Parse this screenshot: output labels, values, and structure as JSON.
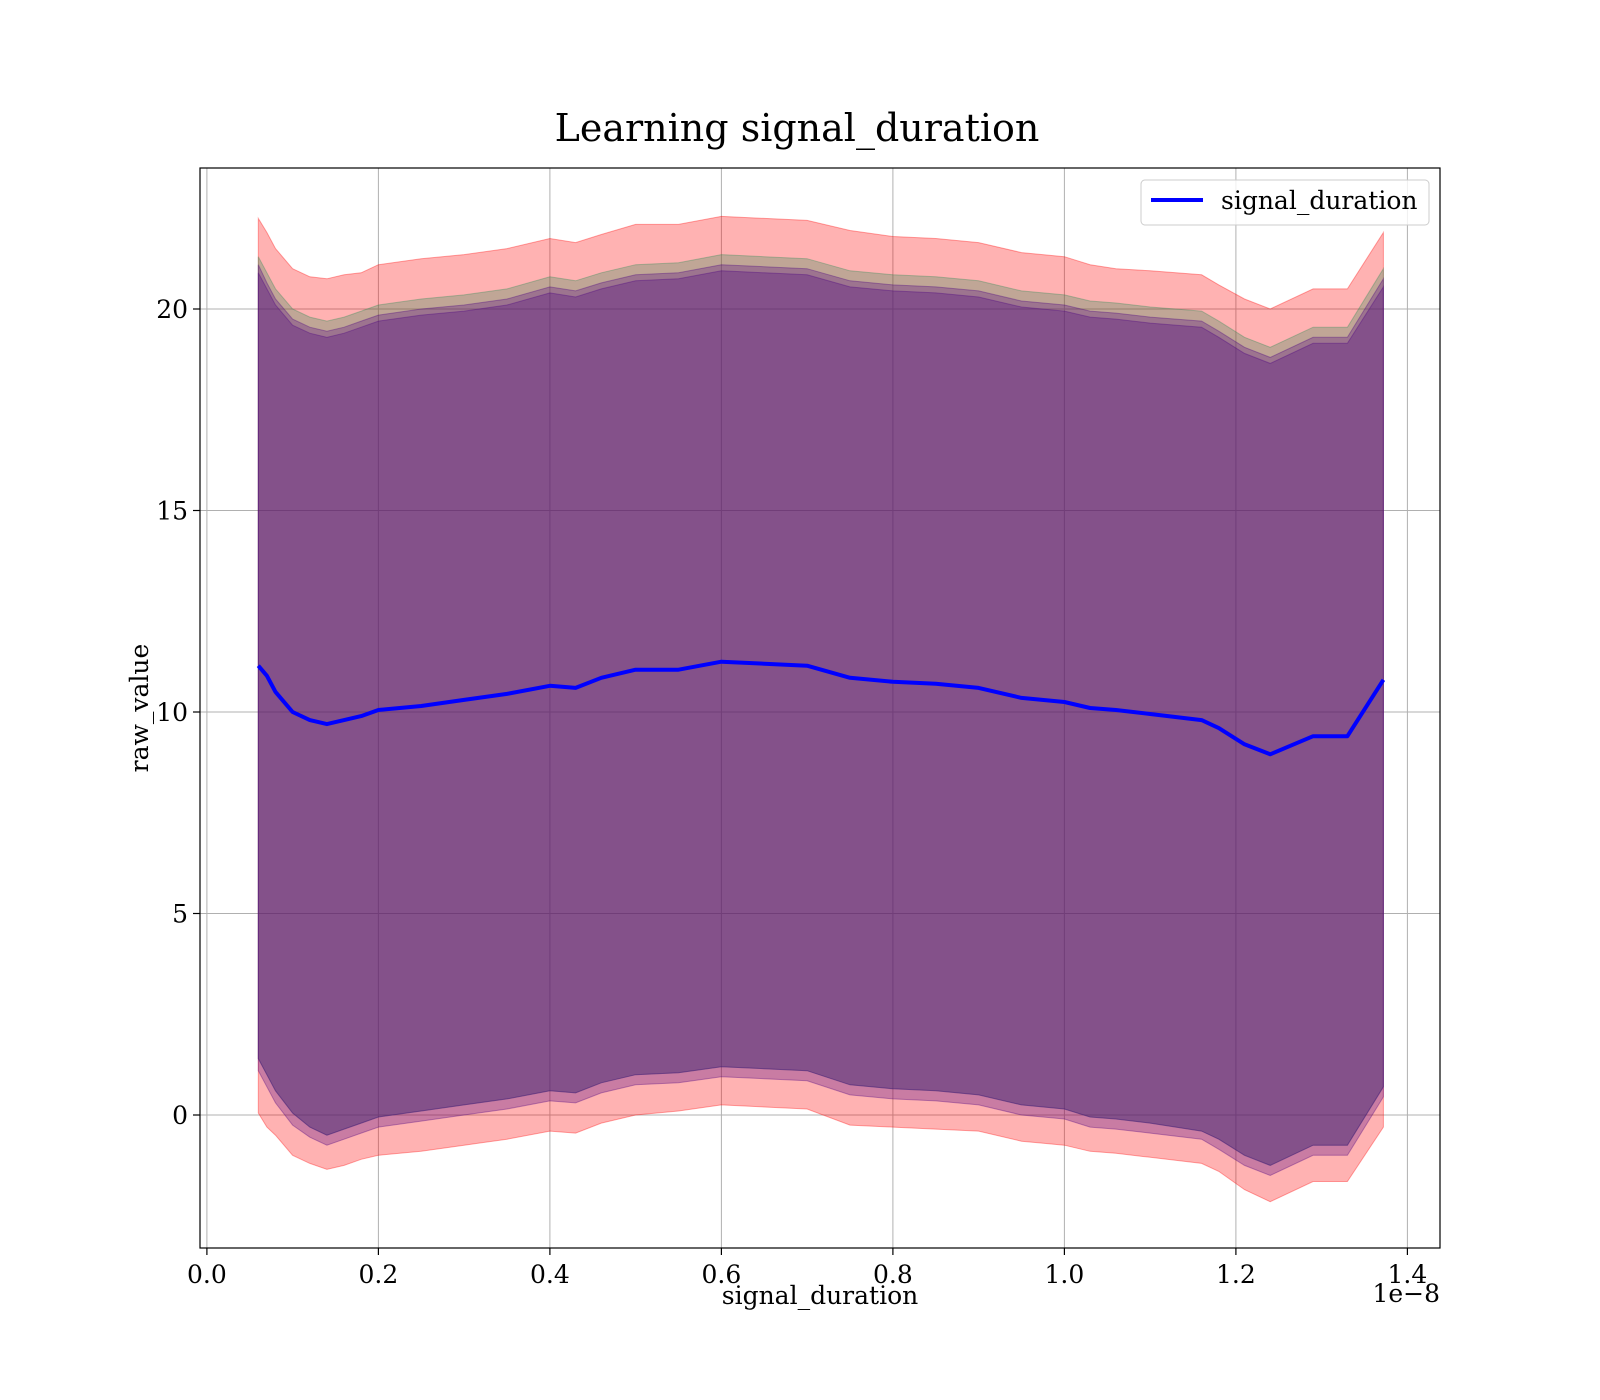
{
  "chart_data": {
    "type": "area",
    "title": "Learning signal_duration",
    "xlabel": "signal_duration",
    "ylabel": "raw_value",
    "x_offset_text": "1e−8",
    "xlim": [
      -0.008,
      1.438
    ],
    "ylim": [
      -3.3,
      23.5
    ],
    "x_ticks": [
      0.0,
      0.2,
      0.4,
      0.6,
      0.8,
      1.0,
      1.2,
      1.4
    ],
    "x_tick_labels": [
      "0.0",
      "0.2",
      "0.4",
      "0.6",
      "0.8",
      "1.0",
      "1.2",
      "1.4"
    ],
    "y_ticks": [
      0,
      5,
      10,
      15,
      20
    ],
    "y_tick_labels": [
      "0",
      "5",
      "10",
      "15",
      "20"
    ],
    "grid": true,
    "legend": {
      "position": "top-right",
      "entries": [
        "signal_duration"
      ]
    },
    "x": [
      0.06,
      0.07,
      0.08,
      0.1,
      0.12,
      0.14,
      0.16,
      0.18,
      0.2,
      0.25,
      0.3,
      0.35,
      0.4,
      0.43,
      0.46,
      0.5,
      0.55,
      0.6,
      0.65,
      0.7,
      0.75,
      0.8,
      0.85,
      0.9,
      0.95,
      1.0,
      1.03,
      1.06,
      1.1,
      1.16,
      1.18,
      1.21,
      1.24,
      1.29,
      1.33,
      1.372
    ],
    "series": [
      {
        "name": "signal_duration",
        "color": "#0000ff",
        "values": [
          11.15,
          10.9,
          10.5,
          10.0,
          9.8,
          9.7,
          9.8,
          9.9,
          10.05,
          10.15,
          10.3,
          10.45,
          10.65,
          10.6,
          10.85,
          11.05,
          11.05,
          11.25,
          11.2,
          11.15,
          10.85,
          10.75,
          10.7,
          10.6,
          10.35,
          10.25,
          10.1,
          10.05,
          9.95,
          9.8,
          9.6,
          9.2,
          8.95,
          9.4,
          9.4,
          10.8
        ]
      }
    ],
    "bands": [
      {
        "color": "#ff0000",
        "opacity": 0.3,
        "lower": [
          0.05,
          -0.3,
          -0.5,
          -1.0,
          -1.2,
          -1.35,
          -1.25,
          -1.1,
          -1.0,
          -0.9,
          -0.75,
          -0.6,
          -0.4,
          -0.45,
          -0.2,
          0.0,
          0.1,
          0.25,
          0.2,
          0.15,
          -0.25,
          -0.3,
          -0.35,
          -0.4,
          -0.65,
          -0.75,
          -0.9,
          -0.95,
          -1.05,
          -1.2,
          -1.4,
          -1.85,
          -2.15,
          -1.65,
          -1.65,
          -0.3
        ],
        "upper": [
          22.25,
          21.9,
          21.5,
          21.0,
          20.8,
          20.75,
          20.85,
          20.9,
          21.1,
          21.25,
          21.35,
          21.5,
          21.75,
          21.65,
          21.85,
          22.1,
          22.1,
          22.3,
          22.25,
          22.2,
          21.95,
          21.8,
          21.75,
          21.65,
          21.4,
          21.3,
          21.1,
          21.0,
          20.95,
          20.85,
          20.6,
          20.25,
          20.0,
          20.5,
          20.5,
          21.9
        ]
      },
      {
        "color": "#2e8b57",
        "opacity": 0.3,
        "lower": [
          1.4,
          1.0,
          0.6,
          0.05,
          -0.3,
          -0.5,
          -0.35,
          -0.2,
          -0.05,
          0.1,
          0.25,
          0.4,
          0.6,
          0.55,
          0.8,
          1.0,
          1.05,
          1.2,
          1.15,
          1.1,
          0.75,
          0.65,
          0.6,
          0.5,
          0.25,
          0.15,
          -0.05,
          -0.1,
          -0.2,
          -0.4,
          -0.6,
          -1.0,
          -1.25,
          -0.75,
          -0.75,
          0.7
        ],
        "upper": [
          21.3,
          20.9,
          20.5,
          20.0,
          19.8,
          19.7,
          19.8,
          19.95,
          20.1,
          20.25,
          20.35,
          20.5,
          20.8,
          20.7,
          20.9,
          21.1,
          21.15,
          21.35,
          21.3,
          21.25,
          20.95,
          20.85,
          20.8,
          20.7,
          20.45,
          20.35,
          20.2,
          20.15,
          20.05,
          19.95,
          19.7,
          19.3,
          19.05,
          19.55,
          19.55,
          21.0
        ]
      },
      {
        "color": "#4b0082",
        "opacity": 0.3,
        "lower": [
          1.1,
          0.7,
          0.3,
          -0.25,
          -0.55,
          -0.75,
          -0.6,
          -0.45,
          -0.3,
          -0.15,
          0.0,
          0.15,
          0.35,
          0.3,
          0.55,
          0.75,
          0.8,
          0.95,
          0.9,
          0.85,
          0.5,
          0.4,
          0.35,
          0.25,
          0.0,
          -0.1,
          -0.3,
          -0.35,
          -0.45,
          -0.6,
          -0.85,
          -1.25,
          -1.5,
          -1.0,
          -1.0,
          0.45
        ],
        "upper": [
          21.1,
          20.65,
          20.25,
          19.75,
          19.55,
          19.45,
          19.55,
          19.7,
          19.85,
          20.0,
          20.1,
          20.25,
          20.55,
          20.45,
          20.65,
          20.85,
          20.9,
          21.1,
          21.05,
          21.0,
          20.7,
          20.6,
          20.55,
          20.45,
          20.2,
          20.1,
          19.95,
          19.9,
          19.8,
          19.7,
          19.45,
          19.05,
          18.8,
          19.3,
          19.3,
          20.75
        ]
      },
      {
        "color": "#4b0082",
        "opacity": 0.3,
        "lower": [
          1.4,
          1.0,
          0.6,
          0.05,
          -0.3,
          -0.5,
          -0.35,
          -0.2,
          -0.05,
          0.1,
          0.25,
          0.4,
          0.6,
          0.55,
          0.8,
          1.0,
          1.05,
          1.2,
          1.15,
          1.1,
          0.75,
          0.65,
          0.6,
          0.5,
          0.25,
          0.15,
          -0.05,
          -0.1,
          -0.2,
          -0.4,
          -0.6,
          -1.0,
          -1.25,
          -0.75,
          -0.75,
          0.7
        ],
        "upper": [
          20.9,
          20.5,
          20.1,
          19.6,
          19.4,
          19.3,
          19.4,
          19.55,
          19.7,
          19.85,
          19.95,
          20.1,
          20.4,
          20.3,
          20.5,
          20.7,
          20.75,
          20.95,
          20.9,
          20.85,
          20.55,
          20.45,
          20.4,
          20.3,
          20.05,
          19.95,
          19.8,
          19.75,
          19.65,
          19.55,
          19.3,
          18.9,
          18.65,
          19.15,
          19.15,
          20.55
        ]
      }
    ]
  }
}
